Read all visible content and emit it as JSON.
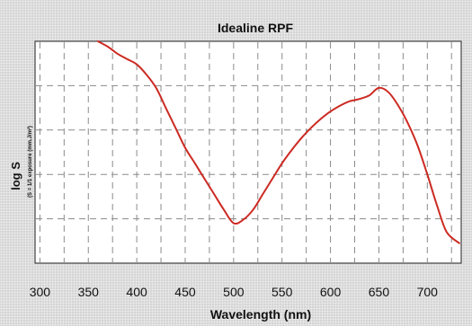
{
  "chart_data": {
    "type": "line",
    "title": "Idealine RPF",
    "xlabel": "Wavelength (nm)",
    "ylabel": "log S",
    "ylabel_sub": "(S = 1/1 exposure (mm.J/m²)",
    "xlim": [
      295,
      735
    ],
    "ylim": [
      0,
      5
    ],
    "x_ticks": [
      300,
      350,
      400,
      450,
      500,
      550,
      600,
      650,
      700
    ],
    "y_gridlines": [
      0,
      1,
      2,
      3,
      4,
      5
    ],
    "grid": true,
    "color": "#cc2a22",
    "series": [
      {
        "x": [
          360,
          370,
          380,
          390,
          400,
          410,
          420,
          430,
          440,
          450,
          460,
          470,
          480,
          490,
          500,
          510,
          520,
          530,
          540,
          550,
          560,
          570,
          580,
          590,
          600,
          610,
          620,
          630,
          640,
          650,
          660,
          670,
          680,
          690,
          700,
          710,
          720,
          733
        ],
        "y": [
          5.0,
          4.88,
          4.72,
          4.6,
          4.48,
          4.25,
          3.95,
          3.5,
          3.05,
          2.6,
          2.25,
          1.9,
          1.55,
          1.2,
          0.9,
          0.98,
          1.2,
          1.55,
          1.9,
          2.25,
          2.55,
          2.82,
          3.05,
          3.25,
          3.42,
          3.55,
          3.65,
          3.7,
          3.78,
          3.95,
          3.85,
          3.55,
          3.15,
          2.65,
          2.0,
          1.3,
          0.7,
          0.45
        ]
      }
    ]
  }
}
